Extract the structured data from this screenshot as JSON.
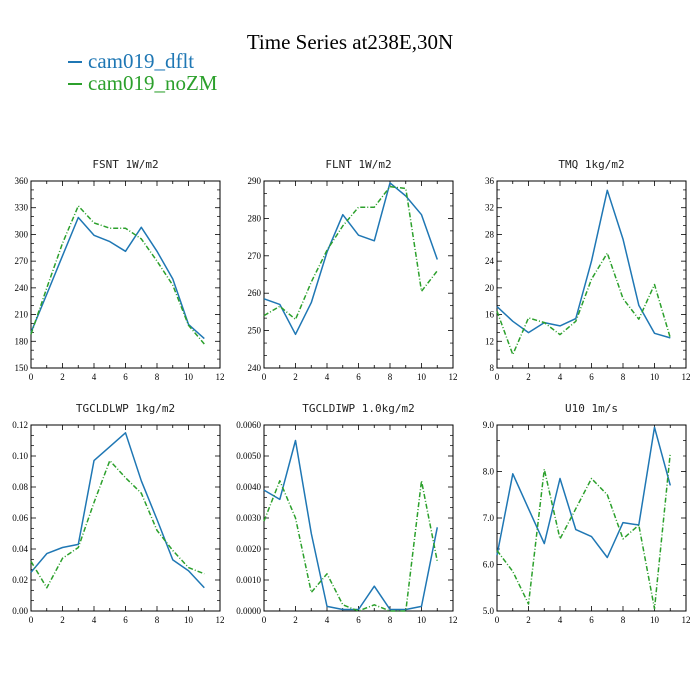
{
  "page_title": "Time Series at238E,30N",
  "legend": [
    {
      "label": "cam019_dflt",
      "color": "#1f77b4",
      "dashed": false
    },
    {
      "label": "cam019_noZM",
      "color": "#2ca02c",
      "dashed": true
    }
  ],
  "chart_data": [
    {
      "type": "line",
      "title": "FSNT   1W/m2",
      "xlim": [
        0,
        12
      ],
      "ylim": [
        150,
        360
      ],
      "xticks": [
        0,
        2,
        4,
        6,
        8,
        10,
        12
      ],
      "xtick_labels": [
        "0",
        "2",
        "4",
        "6",
        "8",
        "10",
        "12"
      ],
      "yticks": [
        150,
        180,
        210,
        240,
        270,
        300,
        330,
        360
      ],
      "ytick_labels": [
        "150",
        "180",
        "210",
        "240",
        "270",
        "300",
        "330",
        "360"
      ],
      "x": [
        0,
        1,
        2,
        3,
        4,
        5,
        6,
        7,
        8,
        9,
        10,
        11
      ],
      "series": [
        {
          "name": "cam019_dflt",
          "values": [
            190,
            233,
            276,
            319,
            299,
            292,
            281,
            308,
            281,
            250,
            199,
            183
          ]
        },
        {
          "name": "cam019_noZM",
          "values": [
            188,
            240,
            290,
            332,
            313,
            307,
            307,
            295,
            270,
            243,
            198,
            177
          ]
        }
      ]
    },
    {
      "type": "line",
      "title": "FLNT   1W/m2",
      "xlim": [
        0,
        12
      ],
      "ylim": [
        240,
        290
      ],
      "xticks": [
        0,
        2,
        4,
        6,
        8,
        10,
        12
      ],
      "xtick_labels": [
        "0",
        "2",
        "4",
        "6",
        "8",
        "10",
        "12"
      ],
      "yticks": [
        240,
        250,
        260,
        270,
        280,
        290
      ],
      "ytick_labels": [
        "240",
        "250",
        "260",
        "270",
        "280",
        "290"
      ],
      "x": [
        0,
        1,
        2,
        3,
        4,
        5,
        6,
        7,
        8,
        9,
        10,
        11
      ],
      "series": [
        {
          "name": "cam019_dflt",
          "values": [
            258.5,
            257,
            249,
            257.5,
            271,
            281,
            275.5,
            274,
            289.5,
            286,
            281,
            269
          ]
        },
        {
          "name": "cam019_noZM",
          "values": [
            254,
            256.5,
            253,
            263,
            271.5,
            278,
            283,
            283,
            288.5,
            288,
            260.5,
            266
          ]
        }
      ]
    },
    {
      "type": "line",
      "title": "TMQ   1kg/m2",
      "xlim": [
        0,
        12
      ],
      "ylim": [
        8,
        36
      ],
      "xticks": [
        0,
        2,
        4,
        6,
        8,
        10,
        12
      ],
      "xtick_labels": [
        "0",
        "2",
        "4",
        "6",
        "8",
        "10",
        "12"
      ],
      "yticks": [
        8,
        12,
        16,
        20,
        24,
        28,
        32,
        36
      ],
      "ytick_labels": [
        "8",
        "12",
        "16",
        "20",
        "24",
        "28",
        "32",
        "36"
      ],
      "x": [
        0,
        1,
        2,
        3,
        4,
        5,
        6,
        7,
        8,
        9,
        10,
        11
      ],
      "series": [
        {
          "name": "cam019_dflt",
          "values": [
            17.2,
            15,
            13.3,
            14.8,
            14.3,
            15.4,
            24,
            34.6,
            27.3,
            17.4,
            13.2,
            12.5
          ]
        },
        {
          "name": "cam019_noZM",
          "values": [
            16.5,
            10,
            15.5,
            14.8,
            13,
            15,
            21.3,
            25.2,
            18.4,
            15.3,
            20.5,
            12.5
          ]
        }
      ]
    },
    {
      "type": "line",
      "title": "TGCLDLWP   1kg/m2",
      "xlim": [
        0,
        12
      ],
      "ylim": [
        0,
        0.12
      ],
      "xticks": [
        0,
        2,
        4,
        6,
        8,
        10,
        12
      ],
      "xtick_labels": [
        "0",
        "2",
        "4",
        "6",
        "8",
        "10",
        "12"
      ],
      "yticks": [
        0,
        0.02,
        0.04,
        0.06,
        0.08,
        0.1,
        0.12
      ],
      "ytick_labels": [
        "0.00",
        "0.02",
        "0.04",
        "0.06",
        "0.08",
        "0.10",
        "0.12"
      ],
      "x": [
        0,
        1,
        2,
        3,
        4,
        5,
        6,
        7,
        8,
        9,
        10,
        11
      ],
      "series": [
        {
          "name": "cam019_dflt",
          "values": [
            0.025,
            0.037,
            0.041,
            0.043,
            0.097,
            0.106,
            0.115,
            0.084,
            0.059,
            0.033,
            0.026,
            0.015
          ]
        },
        {
          "name": "cam019_noZM",
          "values": [
            0.032,
            0.015,
            0.034,
            0.041,
            0.07,
            0.097,
            0.086,
            0.076,
            0.052,
            0.039,
            0.028,
            0.024
          ]
        }
      ]
    },
    {
      "type": "line",
      "title": "TGCLDIWP   1.0kg/m2",
      "xlim": [
        0,
        12
      ],
      "ylim": [
        0,
        0.006
      ],
      "xticks": [
        0,
        2,
        4,
        6,
        8,
        10,
        12
      ],
      "xtick_labels": [
        "0",
        "2",
        "4",
        "6",
        "8",
        "10",
        "12"
      ],
      "yticks": [
        0,
        0.001,
        0.002,
        0.003,
        0.004,
        0.005,
        0.006
      ],
      "ytick_labels": [
        "0.0000",
        "0.0010",
        "0.0020",
        "0.0030",
        "0.0040",
        "0.0050",
        "0.0060"
      ],
      "x": [
        0,
        1,
        2,
        3,
        4,
        5,
        6,
        7,
        8,
        9,
        10,
        11
      ],
      "series": [
        {
          "name": "cam019_dflt",
          "values": [
            0.0039,
            0.0036,
            0.0055,
            0.0025,
            0.00015,
            5e-05,
            5e-05,
            0.0008,
            5e-05,
            5e-05,
            0.00015,
            0.0027
          ]
        },
        {
          "name": "cam019_noZM",
          "values": [
            0.0029,
            0.0042,
            0.003,
            0.0006,
            0.0012,
            0.0002,
            0.0,
            0.0002,
            0.0,
            0.0,
            0.0042,
            0.0016
          ]
        }
      ]
    },
    {
      "type": "line",
      "title": "U10   1m/s",
      "xlim": [
        0,
        12
      ],
      "ylim": [
        5,
        9
      ],
      "xticks": [
        0,
        2,
        4,
        6,
        8,
        10,
        12
      ],
      "xtick_labels": [
        "0",
        "2",
        "4",
        "6",
        "8",
        "10",
        "12"
      ],
      "yticks": [
        5,
        6,
        7,
        8,
        9
      ],
      "ytick_labels": [
        "5.0",
        "6.0",
        "7.0",
        "8.0",
        "9.0"
      ],
      "x": [
        0,
        1,
        2,
        3,
        4,
        5,
        6,
        7,
        8,
        9,
        10,
        11
      ],
      "series": [
        {
          "name": "cam019_dflt",
          "values": [
            6.2,
            7.95,
            7.2,
            6.45,
            7.85,
            6.75,
            6.6,
            6.15,
            6.9,
            6.85,
            8.95,
            7.7
          ]
        },
        {
          "name": "cam019_noZM",
          "values": [
            6.3,
            5.85,
            5.15,
            8.05,
            6.55,
            7.2,
            7.85,
            7.5,
            6.55,
            6.85,
            5.05,
            8.4
          ]
        }
      ]
    }
  ]
}
